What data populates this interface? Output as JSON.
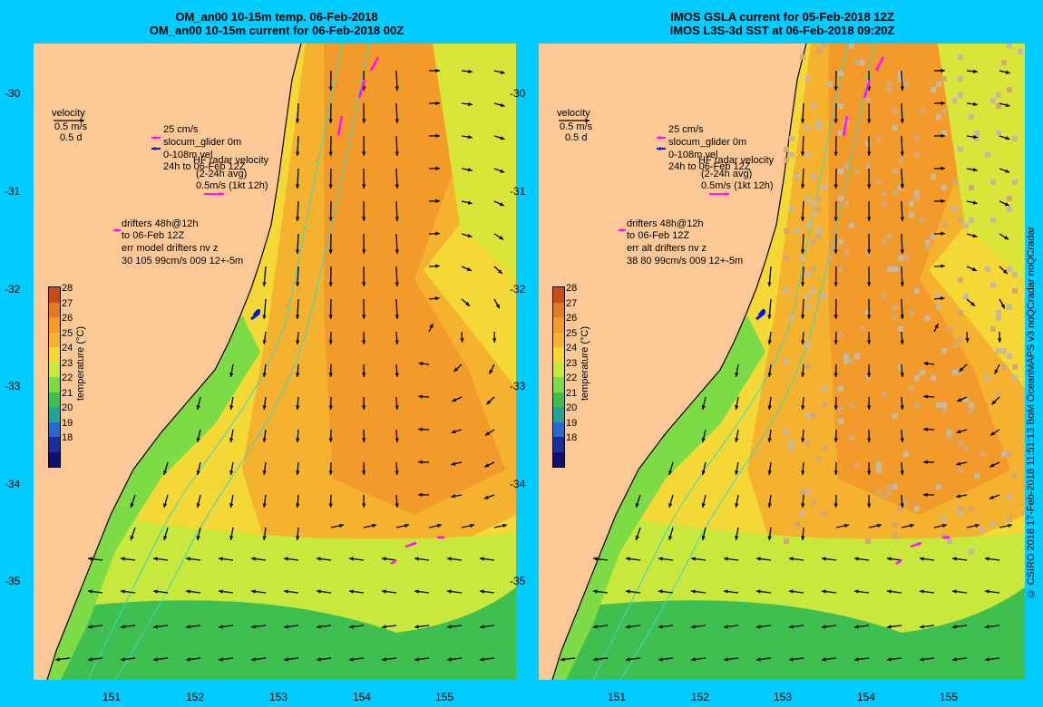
{
  "left": {
    "title1": "OM_an00 10-15m temp. 06-Feb-2018",
    "title2": "OM_an00 10-15m current for 06-Feb-2018 00Z",
    "drift_stats": "30 105 99cm/s 009 12+-5m",
    "drift_err": "err model drifters nv z"
  },
  "right": {
    "title1": "IMOS GSLA current for 05-Feb-2018 12Z",
    "title2": "IMOS L3S-3d SST at 06-Feb-2018 09:20Z",
    "drift_stats": "38 80 99cm/s 009 12+-5m",
    "drift_err": "err alt drifters nv z"
  },
  "legend": {
    "velocity": "velocity",
    "vel_scale": "0.5 m/s",
    "vel_days": "0.5 d",
    "glider_scale": "25 cm/s",
    "glider": "slocum_glider 0m",
    "glider_depth": "0-108m vel",
    "glider_time": "24h to 06-Feb 12Z",
    "radar": "HF radar velocity",
    "radar_avg": "(2-24h avg)",
    "radar_scale": "0.5m/s (1kt 12h)",
    "drifters": "drifters 48h@12h",
    "drifters_to": "to 06-Feb 12Z"
  },
  "axes": {
    "yticks": [
      "-30",
      "-31",
      "-32",
      "-33",
      "-34",
      "-35"
    ],
    "xticks": [
      "151",
      "152",
      "153",
      "154",
      "155"
    ]
  },
  "colorbar": {
    "label": "temperature (°C)",
    "ticks": [
      "28",
      "27",
      "26",
      "25",
      "24",
      "23",
      "22",
      "21",
      "20",
      "19",
      "18"
    ],
    "colors": [
      "#c84c1a",
      "#e07b28",
      "#f29a2a",
      "#f5b22e",
      "#f3d836",
      "#c8e83e",
      "#7ddc45",
      "#3fbf4f",
      "#22a598",
      "#2a68d0",
      "#1b2f9c",
      "#101070"
    ]
  },
  "credit": "© CSIRO 2018  17-Feb-2018 11:51:13 BoM OceanMAPS v3 noQCradar noQCradar"
}
